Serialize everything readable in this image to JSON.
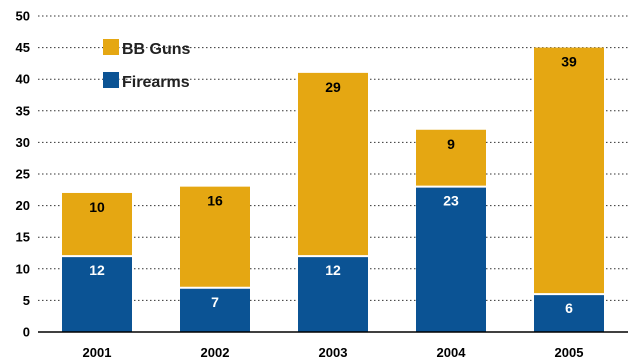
{
  "chart_data": {
    "type": "bar",
    "stacked": true,
    "categories": [
      "2001",
      "2002",
      "2003",
      "2004",
      "2005"
    ],
    "series": [
      {
        "name": "Firearms",
        "values": [
          12,
          7,
          12,
          23,
          6
        ],
        "color": "#0b5394",
        "label_color": "#ffffff"
      },
      {
        "name": "BB Guns",
        "values": [
          10,
          16,
          29,
          9,
          39
        ],
        "color": "#e5a712",
        "label_color": "#000000"
      }
    ],
    "ylim": [
      0,
      50
    ],
    "yticks": [
      "0",
      "5",
      "10",
      "15",
      "20",
      "25",
      "30",
      "35",
      "40",
      "45",
      "50"
    ],
    "grid": true,
    "legend_position": "top-left"
  }
}
